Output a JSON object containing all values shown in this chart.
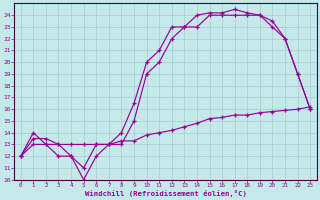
{
  "xlabel": "Windchill (Refroidissement éolien,°C)",
  "bg_color": "#c5e8e8",
  "line_color": "#990099",
  "grid_color": "#aacccc",
  "spine_color": "#440044",
  "xlim": [
    -0.5,
    23.5
  ],
  "ylim": [
    10,
    25
  ],
  "xticks": [
    0,
    1,
    2,
    3,
    4,
    5,
    6,
    7,
    8,
    9,
    10,
    11,
    12,
    13,
    14,
    15,
    16,
    17,
    18,
    19,
    20,
    21,
    22,
    23
  ],
  "yticks": [
    10,
    11,
    12,
    13,
    14,
    15,
    16,
    17,
    18,
    19,
    20,
    21,
    22,
    23,
    24
  ],
  "curve1_x": [
    0,
    1,
    2,
    3,
    4,
    5,
    6,
    7,
    8,
    9,
    10,
    11,
    12,
    13,
    14,
    15,
    16,
    17,
    18,
    19,
    20,
    21,
    22,
    23
  ],
  "curve1_y": [
    12,
    13,
    13,
    12,
    12,
    10,
    12,
    13,
    13,
    15,
    19,
    20,
    22,
    23,
    23,
    24,
    24,
    24,
    24,
    24,
    23,
    22,
    19,
    16
  ],
  "curve2_x": [
    0,
    1,
    2,
    3,
    4,
    5,
    6,
    7,
    8,
    9,
    10,
    11,
    12,
    13,
    14,
    15,
    16,
    17,
    18,
    19,
    20,
    21,
    22,
    23
  ],
  "curve2_y": [
    12,
    14,
    13,
    13,
    12,
    11,
    13,
    13,
    14,
    16.5,
    20,
    21,
    23,
    23,
    24,
    24.2,
    24.2,
    24.5,
    24.2,
    24,
    23.5,
    22,
    19,
    16
  ],
  "curve3_x": [
    0,
    1,
    2,
    3,
    4,
    5,
    6,
    7,
    8,
    9,
    10,
    11,
    12,
    13,
    14,
    15,
    16,
    17,
    18,
    19,
    20,
    21,
    22,
    23
  ],
  "curve3_y": [
    12,
    13.5,
    13.5,
    13,
    13,
    13,
    13,
    13,
    13.3,
    13.3,
    13.8,
    14,
    14.2,
    14.5,
    14.8,
    15.2,
    15.3,
    15.5,
    15.5,
    15.7,
    15.8,
    15.9,
    16,
    16.2
  ]
}
